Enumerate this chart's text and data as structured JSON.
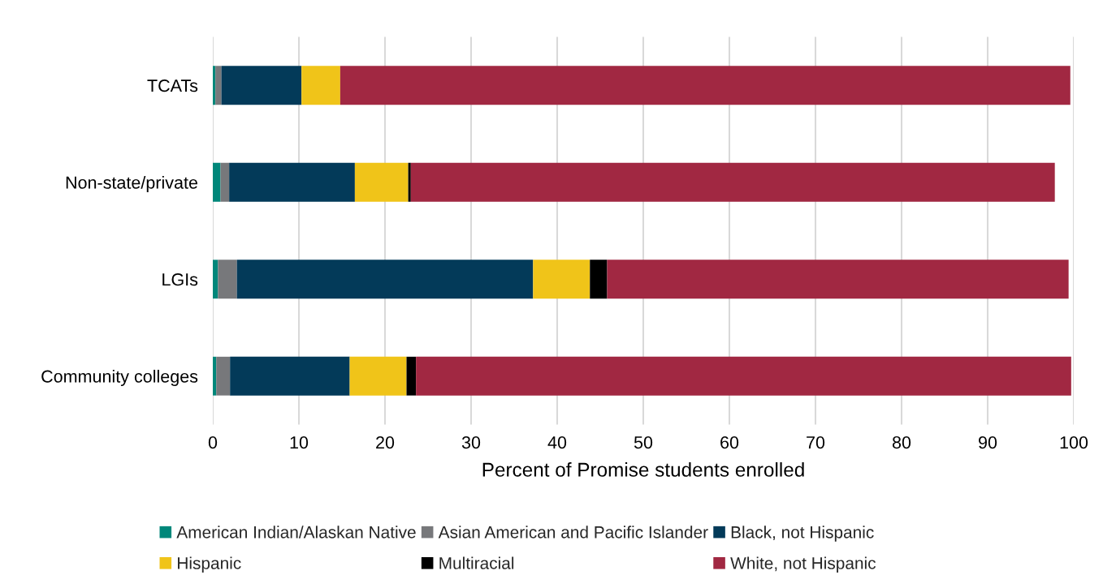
{
  "chart_data": {
    "type": "bar",
    "orientation": "horizontal",
    "stacked": true,
    "categories": [
      "TCATs",
      "Non-state/private",
      "LGIs",
      "Community colleges"
    ],
    "series": [
      {
        "name": "American Indian/Alaskan Native",
        "color": "#00877a",
        "values": [
          0.3,
          0.9,
          0.6,
          0.4
        ]
      },
      {
        "name": "Asian American and Pacific Islander",
        "color": "#77787b",
        "values": [
          0.7,
          1.0,
          2.2,
          1.6
        ]
      },
      {
        "name": "Black, not Hispanic",
        "color": "#033a59",
        "values": [
          9.3,
          14.6,
          34.4,
          13.9
        ]
      },
      {
        "name": "Hispanic",
        "color": "#f0c419",
        "values": [
          4.5,
          6.2,
          6.6,
          6.6
        ]
      },
      {
        "name": "Multiracial",
        "color": "#000000",
        "values": [
          0,
          0.3,
          2.0,
          1.1
        ]
      },
      {
        "name": "White, not Hispanic",
        "color": "#a12842",
        "values": [
          84.8,
          74.8,
          53.6,
          76.1
        ]
      }
    ],
    "xlim": [
      0,
      100
    ],
    "xticks": [
      0,
      10,
      20,
      30,
      40,
      50,
      60,
      70,
      80,
      90,
      100
    ],
    "xlabel": "Percent of Promise students enrolled",
    "grid": "x",
    "legend": "bottom"
  }
}
